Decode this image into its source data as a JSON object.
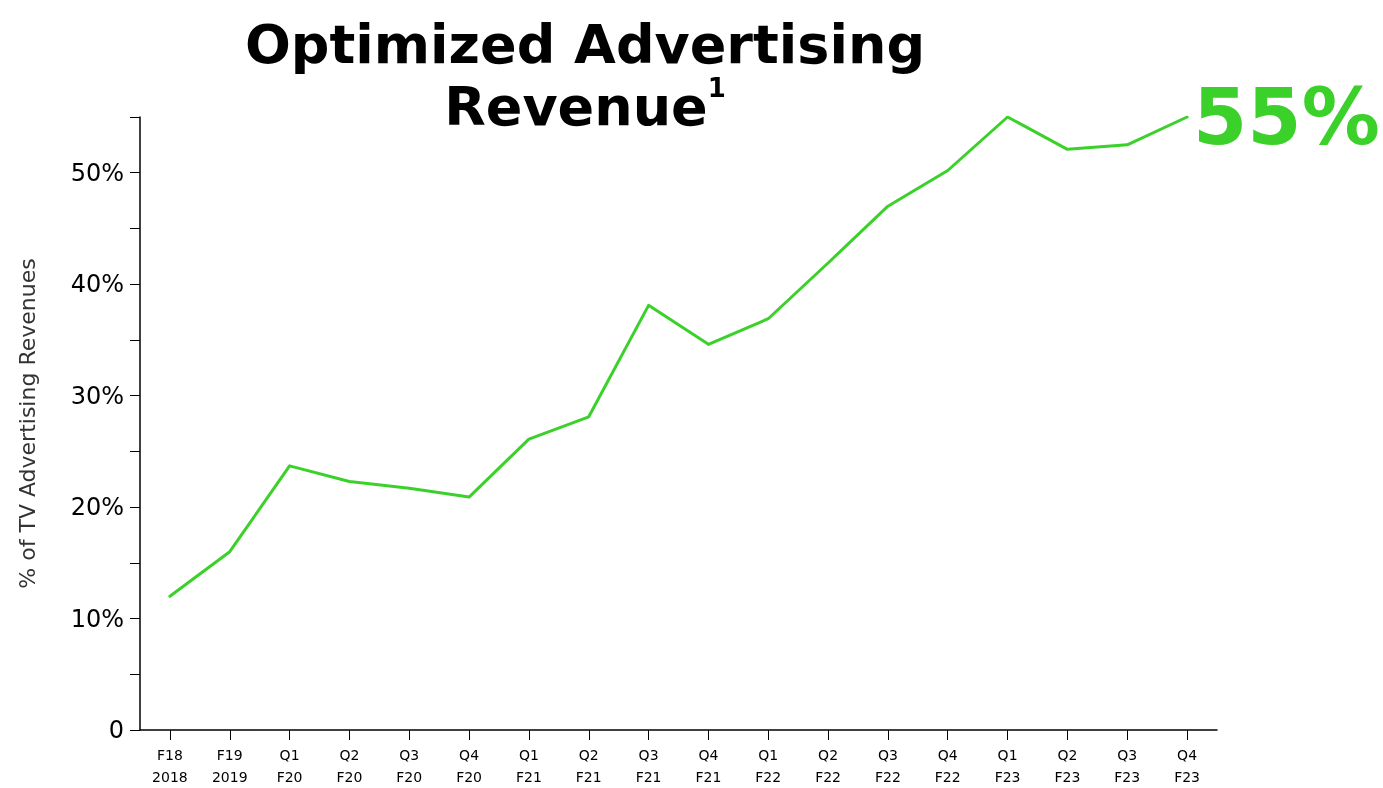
{
  "chart_data": {
    "type": "line",
    "title": "Optimized Advertising\nRevenue$^{1}$",
    "ylabel": "% of TV Advertising Revenues",
    "categories": [
      "F18\n2018",
      "F19\n2019",
      "Q1\nF20",
      "Q2\nF20",
      "Q3\nF20",
      "Q4\nF20",
      "Q1\nF21",
      "Q2\nF21",
      "Q3\nF21",
      "Q4\nF21",
      "Q1\nF22",
      "Q2\nF22",
      "Q3\nF22",
      "Q4\nF22",
      "Q1\nF23",
      "Q2\nF23",
      "Q3\nF23",
      "Q4\nF23"
    ],
    "series": [
      {
        "color": "#3cd12a",
        "values": [
          12,
          16,
          23.7,
          22.3,
          21.7,
          20.9,
          26.1,
          28.1,
          38.1,
          34.6,
          36.9,
          41.9,
          47,
          50.2,
          55,
          52.1,
          52.5,
          55
        ]
      }
    ],
    "ylim": [
      0,
      55
    ],
    "yticks": [
      0,
      {
        "value": 5,
        "label": null
      },
      {
        "value": 10,
        "label": "10%"
      },
      {
        "value": 15,
        "label": null
      },
      {
        "value": 20,
        "label": "20%"
      },
      {
        "value": 25,
        "label": null
      },
      {
        "value": 30,
        "label": "30%"
      },
      {
        "value": 35,
        "label": null
      },
      {
        "value": 40,
        "label": "40%"
      },
      {
        "value": 45,
        "label": null
      },
      {
        "value": 50,
        "label": "50%"
      },
      {
        "value": 55,
        "label": null
      }
    ],
    "annotations": [
      {
        "text": "55%",
        "x": "Q4\nF23",
        "y": 55
      }
    ],
    "grid": false,
    "marker": "none",
    "line_style": "solid"
  }
}
